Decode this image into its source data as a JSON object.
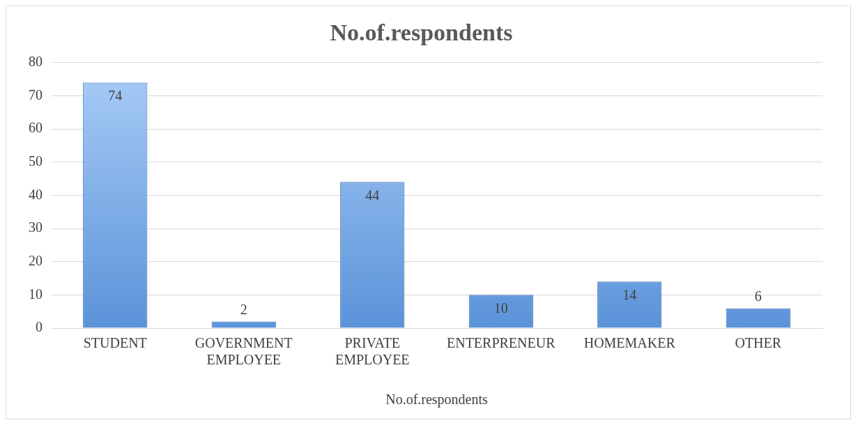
{
  "chart_data": {
    "type": "bar",
    "title": "No.of.respondents",
    "xlabel": "No.of.respondents",
    "categories": [
      "STUDENT",
      "GOVERNMENT EMPLOYEE",
      "PRIVATE EMPLOYEE",
      "ENTERPRENEUR",
      "HOMEMAKER",
      "OTHER"
    ],
    "values": [
      74,
      2,
      44,
      10,
      14,
      6
    ],
    "color": "#5b93d9",
    "ylim": [
      0,
      80
    ],
    "yticks": [
      0,
      10,
      20,
      30,
      40,
      50,
      60,
      70,
      80
    ],
    "grid": "y",
    "data_labels": true
  }
}
